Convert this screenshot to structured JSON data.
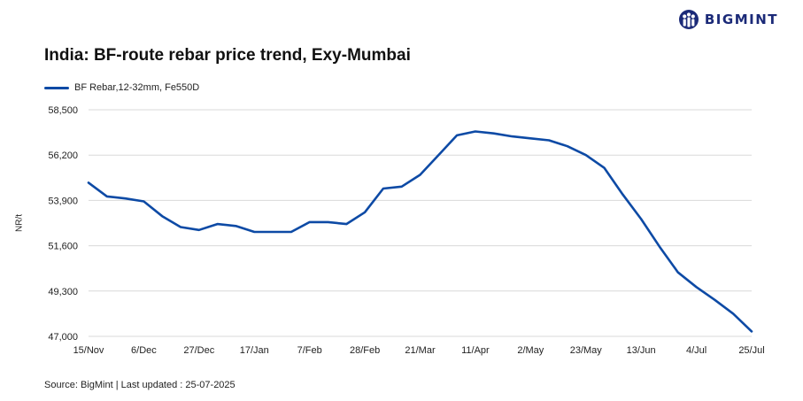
{
  "brand": {
    "name": "BIGMINT",
    "color": "#1b2a78",
    "icon": "bigmint-logo-icon"
  },
  "chart_data": {
    "type": "line",
    "title": "India: BF-route rebar price trend, Exy-Mumbai",
    "xlabel": "",
    "ylabel": "NR/t",
    "ylim": [
      47000,
      58500
    ],
    "yticks": [
      47000,
      49300,
      51600,
      53900,
      56200,
      58500
    ],
    "ytick_labels": [
      "47,000",
      "49,300",
      "51,600",
      "53,900",
      "56,200",
      "58,500"
    ],
    "x_tick_labels": [
      "15/Nov",
      "6/Dec",
      "27/Dec",
      "17/Jan",
      "7/Feb",
      "28/Feb",
      "21/Mar",
      "11/Apr",
      "2/May",
      "23/May",
      "13/Jun",
      "4/Jul",
      "25/Jul"
    ],
    "grid": "horizontal",
    "legend_position": "top-left",
    "series": [
      {
        "name": "BF Rebar,12-32mm, Fe550D",
        "color": "#0d4aa5",
        "x": [
          "15/Nov",
          "22/Nov",
          "29/Nov",
          "6/Dec",
          "13/Dec",
          "20/Dec",
          "27/Dec",
          "3/Jan",
          "10/Jan",
          "17/Jan",
          "24/Jan",
          "31/Jan",
          "7/Feb",
          "14/Feb",
          "21/Feb",
          "28/Feb",
          "7/Mar",
          "14/Mar",
          "21/Mar",
          "28/Mar",
          "4/Apr",
          "11/Apr",
          "18/Apr",
          "25/Apr",
          "2/May",
          "9/May",
          "16/May",
          "23/May",
          "30/May",
          "6/Jun",
          "13/Jun",
          "20/Jun",
          "27/Jun",
          "4/Jul",
          "11/Jul",
          "18/Jul",
          "25/Jul"
        ],
        "values": [
          54800,
          54100,
          54000,
          53850,
          53100,
          52550,
          52400,
          52700,
          52600,
          52300,
          52300,
          52300,
          52800,
          52800,
          52700,
          53300,
          54500,
          54600,
          55200,
          56200,
          57200,
          57400,
          57300,
          57150,
          57050,
          56950,
          56650,
          56200,
          55550,
          54200,
          52950,
          51550,
          50250,
          49500,
          48850,
          48150,
          47250
        ]
      }
    ]
  },
  "source": "Source: BigMint | Last updated : 25-07-2025"
}
